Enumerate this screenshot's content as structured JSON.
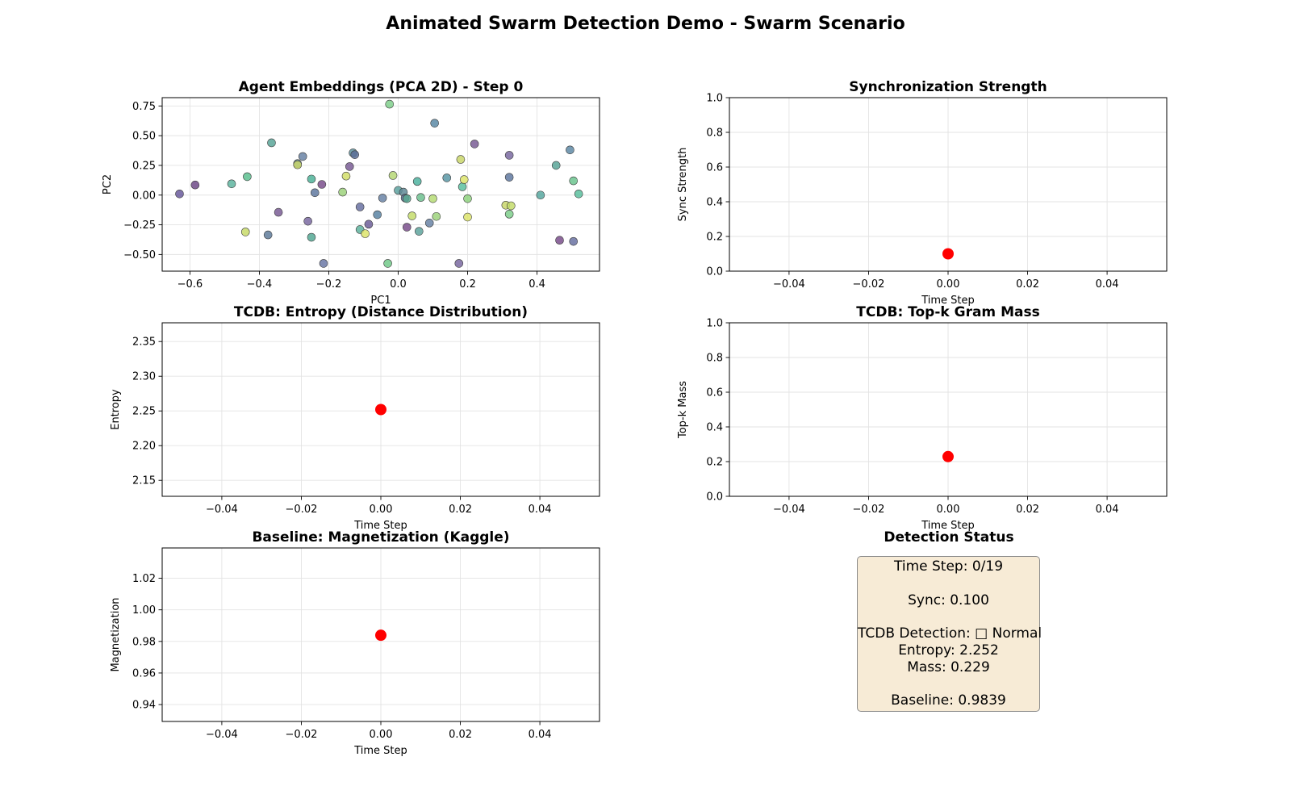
{
  "figure_title": "Animated Swarm Detection Demo - Swarm Scenario",
  "chart_data": [
    {
      "id": "pca",
      "type": "scatter",
      "title": "Agent Embeddings (PCA 2D) - Step 0",
      "xlabel": "PC1",
      "ylabel": "PC2",
      "xlim": [
        -0.68,
        0.58
      ],
      "ylim": [
        -0.64,
        0.82
      ],
      "xticks": [
        -0.6,
        -0.4,
        -0.2,
        0.0,
        0.2,
        0.4
      ],
      "yticks": [
        -0.5,
        -0.25,
        0.0,
        0.25,
        0.5,
        0.75
      ],
      "xtick_labels": [
        "−0.6",
        "−0.4",
        "−0.2",
        "0.0",
        "0.2",
        "0.4"
      ],
      "ytick_labels": [
        "−0.50",
        "−0.25",
        "0.00",
        "0.25",
        "0.50",
        "0.75"
      ],
      "grid": true,
      "points": [
        {
          "x": -0.63,
          "y": 0.01,
          "color": "#6a5b9c"
        },
        {
          "x": -0.585,
          "y": 0.085,
          "color": "#6e4a87"
        },
        {
          "x": -0.48,
          "y": 0.095,
          "color": "#5fb5a0"
        },
        {
          "x": -0.435,
          "y": 0.155,
          "color": "#5cc08f"
        },
        {
          "x": -0.44,
          "y": -0.31,
          "color": "#c8db6a"
        },
        {
          "x": -0.375,
          "y": -0.335,
          "color": "#5f7b9a"
        },
        {
          "x": -0.365,
          "y": 0.44,
          "color": "#5aa699"
        },
        {
          "x": -0.345,
          "y": -0.145,
          "color": "#7a5d95"
        },
        {
          "x": -0.29,
          "y": 0.265,
          "color": "#5f8a96"
        },
        {
          "x": -0.29,
          "y": 0.255,
          "color": "#c9d66b"
        },
        {
          "x": -0.275,
          "y": 0.325,
          "color": "#6a84a6"
        },
        {
          "x": -0.26,
          "y": -0.22,
          "color": "#7a6aa1"
        },
        {
          "x": -0.25,
          "y": 0.135,
          "color": "#4fb399"
        },
        {
          "x": -0.25,
          "y": -0.355,
          "color": "#55a894"
        },
        {
          "x": -0.24,
          "y": 0.02,
          "color": "#6079a0"
        },
        {
          "x": -0.22,
          "y": 0.09,
          "color": "#7a4f8c"
        },
        {
          "x": -0.215,
          "y": -0.575,
          "color": "#6b78a6"
        },
        {
          "x": -0.16,
          "y": 0.025,
          "color": "#9dd27c"
        },
        {
          "x": -0.15,
          "y": 0.16,
          "color": "#d2de6a"
        },
        {
          "x": -0.14,
          "y": 0.24,
          "color": "#7a5d95"
        },
        {
          "x": -0.13,
          "y": 0.355,
          "color": "#5f93a0"
        },
        {
          "x": -0.125,
          "y": 0.34,
          "color": "#5a6e97"
        },
        {
          "x": -0.11,
          "y": -0.1,
          "color": "#6a72a2"
        },
        {
          "x": -0.11,
          "y": -0.29,
          "color": "#5fb39d"
        },
        {
          "x": -0.095,
          "y": -0.325,
          "color": "#dde46c"
        },
        {
          "x": -0.085,
          "y": -0.245,
          "color": "#6d5f99"
        },
        {
          "x": -0.06,
          "y": -0.165,
          "color": "#5a84a3"
        },
        {
          "x": -0.045,
          "y": -0.025,
          "color": "#6a84a6"
        },
        {
          "x": -0.03,
          "y": -0.575,
          "color": "#72c98a"
        },
        {
          "x": -0.025,
          "y": 0.765,
          "color": "#80cf8c"
        },
        {
          "x": -0.015,
          "y": 0.165,
          "color": "#b6d776"
        },
        {
          "x": 0.0,
          "y": 0.04,
          "color": "#5ea2a0"
        },
        {
          "x": 0.015,
          "y": 0.025,
          "color": "#5f8a96"
        },
        {
          "x": 0.02,
          "y": -0.025,
          "color": "#5a7099"
        },
        {
          "x": 0.025,
          "y": -0.03,
          "color": "#58a890"
        },
        {
          "x": 0.025,
          "y": -0.27,
          "color": "#7a4f8c"
        },
        {
          "x": 0.04,
          "y": -0.175,
          "color": "#c4dc6c"
        },
        {
          "x": 0.055,
          "y": 0.115,
          "color": "#4fb3a0"
        },
        {
          "x": 0.06,
          "y": -0.305,
          "color": "#5fa49e"
        },
        {
          "x": 0.065,
          "y": -0.02,
          "color": "#6dbf8f"
        },
        {
          "x": 0.09,
          "y": -0.235,
          "color": "#6a84a6"
        },
        {
          "x": 0.1,
          "y": -0.03,
          "color": "#b6dc76"
        },
        {
          "x": 0.105,
          "y": 0.605,
          "color": "#5c8aa6"
        },
        {
          "x": 0.11,
          "y": -0.18,
          "color": "#9dd27c"
        },
        {
          "x": 0.14,
          "y": 0.145,
          "color": "#5a98a6"
        },
        {
          "x": 0.175,
          "y": -0.575,
          "color": "#7a6aa1"
        },
        {
          "x": 0.18,
          "y": 0.3,
          "color": "#c9d66b"
        },
        {
          "x": 0.185,
          "y": 0.07,
          "color": "#5cc09f"
        },
        {
          "x": 0.19,
          "y": 0.13,
          "color": "#dde46c"
        },
        {
          "x": 0.2,
          "y": -0.185,
          "color": "#dde46c"
        },
        {
          "x": 0.2,
          "y": -0.03,
          "color": "#8fd27f"
        },
        {
          "x": 0.22,
          "y": 0.43,
          "color": "#7a5d95"
        },
        {
          "x": 0.31,
          "y": -0.085,
          "color": "#c9d66b"
        },
        {
          "x": 0.32,
          "y": 0.335,
          "color": "#7a6aa1"
        },
        {
          "x": 0.32,
          "y": 0.15,
          "color": "#6079a0"
        },
        {
          "x": 0.32,
          "y": -0.16,
          "color": "#7fcf8c"
        },
        {
          "x": 0.325,
          "y": -0.09,
          "color": "#c4dc6c"
        },
        {
          "x": 0.41,
          "y": 0.0,
          "color": "#58a8a0"
        },
        {
          "x": 0.455,
          "y": 0.25,
          "color": "#5aa699"
        },
        {
          "x": 0.465,
          "y": -0.38,
          "color": "#7a4f8c"
        },
        {
          "x": 0.495,
          "y": 0.38,
          "color": "#5f8aa6"
        },
        {
          "x": 0.505,
          "y": 0.12,
          "color": "#6cc48f"
        },
        {
          "x": 0.505,
          "y": -0.39,
          "color": "#6a72a2"
        },
        {
          "x": 0.52,
          "y": 0.01,
          "color": "#5cc09f"
        }
      ]
    },
    {
      "id": "sync",
      "type": "line",
      "title": "Synchronization Strength",
      "xlabel": "Time Step",
      "ylabel": "Sync Strength",
      "xlim": [
        -0.055,
        0.055
      ],
      "ylim": [
        0.0,
        1.0
      ],
      "xticks": [
        -0.04,
        -0.02,
        0.0,
        0.02,
        0.04
      ],
      "yticks": [
        0.0,
        0.2,
        0.4,
        0.6,
        0.8,
        1.0
      ],
      "xtick_labels": [
        "−0.04",
        "−0.02",
        "0.00",
        "0.02",
        "0.04"
      ],
      "ytick_labels": [
        "0.0",
        "0.2",
        "0.4",
        "0.6",
        "0.8",
        "1.0"
      ],
      "grid": true,
      "series": [
        {
          "x": [
            0
          ],
          "values": [
            0.1
          ],
          "color": "#ff0000"
        }
      ]
    },
    {
      "id": "entropy",
      "type": "line",
      "title": "TCDB: Entropy (Distance Distribution)",
      "xlabel": "Time Step",
      "ylabel": "Entropy",
      "xlim": [
        -0.055,
        0.055
      ],
      "ylim": [
        2.127,
        2.377
      ],
      "xticks": [
        -0.04,
        -0.02,
        0.0,
        0.02,
        0.04
      ],
      "yticks": [
        2.15,
        2.2,
        2.25,
        2.3,
        2.35
      ],
      "xtick_labels": [
        "−0.04",
        "−0.02",
        "0.00",
        "0.02",
        "0.04"
      ],
      "ytick_labels": [
        "2.15",
        "2.20",
        "2.25",
        "2.30",
        "2.35"
      ],
      "grid": true,
      "series": [
        {
          "x": [
            0
          ],
          "values": [
            2.252
          ],
          "color": "#ff0000"
        }
      ]
    },
    {
      "id": "mass",
      "type": "line",
      "title": "TCDB: Top-k Gram Mass",
      "xlabel": "Time Step",
      "ylabel": "Top-k Mass",
      "xlim": [
        -0.055,
        0.055
      ],
      "ylim": [
        0.0,
        1.0
      ],
      "xticks": [
        -0.04,
        -0.02,
        0.0,
        0.02,
        0.04
      ],
      "yticks": [
        0.0,
        0.2,
        0.4,
        0.6,
        0.8,
        1.0
      ],
      "xtick_labels": [
        "−0.04",
        "−0.02",
        "0.00",
        "0.02",
        "0.04"
      ],
      "ytick_labels": [
        "0.0",
        "0.2",
        "0.4",
        "0.6",
        "0.8",
        "1.0"
      ],
      "grid": true,
      "series": [
        {
          "x": [
            0
          ],
          "values": [
            0.229
          ],
          "color": "#ff0000"
        }
      ]
    },
    {
      "id": "mag",
      "type": "line",
      "title": "Baseline: Magnetization (Kaggle)",
      "xlabel": "Time Step",
      "ylabel": "Magnetization",
      "xlim": [
        -0.055,
        0.055
      ],
      "ylim": [
        0.9293,
        1.0392
      ],
      "xticks": [
        -0.04,
        -0.02,
        0.0,
        0.02,
        0.04
      ],
      "yticks": [
        0.94,
        0.96,
        0.98,
        1.0,
        1.02
      ],
      "xtick_labels": [
        "−0.04",
        "−0.02",
        "0.00",
        "0.02",
        "0.04"
      ],
      "ytick_labels": [
        "0.94",
        "0.96",
        "0.98",
        "1.00",
        "1.02"
      ],
      "grid": true,
      "series": [
        {
          "x": [
            0
          ],
          "values": [
            0.9839
          ],
          "color": "#ff0000"
        }
      ]
    }
  ],
  "status": {
    "title": "Detection Status",
    "time_step": "Time Step: 0/19",
    "sync": "Sync: 0.100",
    "tcdb": "TCDB Detection: □ Normal",
    "entropy": "Entropy: 2.252",
    "mass": "Mass: 0.229",
    "baseline": "Baseline: 0.9839"
  }
}
